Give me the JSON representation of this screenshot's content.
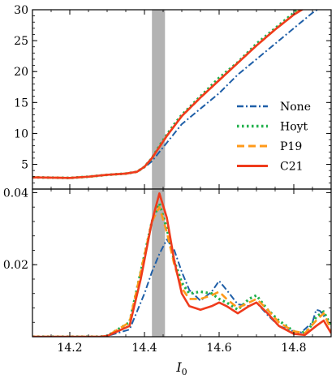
{
  "chart_data": [
    {
      "type": "line",
      "xlabel": "",
      "ylabel": "",
      "xlim": [
        14.1,
        14.9
      ],
      "ylim": [
        1,
        30
      ],
      "yticks": [
        5,
        10,
        15,
        20,
        25,
        30
      ],
      "shaded_band": {
        "x0": 14.42,
        "x1": 14.455,
        "color": "#b3b3b3"
      },
      "legend": {
        "placement": "center-right",
        "entries": [
          "None",
          "Hoyt",
          "P19",
          "C21"
        ]
      },
      "series": [
        {
          "name": "None",
          "color": "#1f5fa8",
          "dash": "dashdot",
          "x": [
            14.1,
            14.2,
            14.25,
            14.3,
            14.35,
            14.38,
            14.4,
            14.42,
            14.44,
            14.46,
            14.48,
            14.5,
            14.55,
            14.6,
            14.65,
            14.7,
            14.75,
            14.8,
            14.85,
            14.9
          ],
          "y": [
            2.9,
            2.8,
            3.0,
            3.3,
            3.5,
            3.8,
            4.5,
            5.5,
            7.0,
            8.5,
            10.0,
            11.5,
            14.0,
            16.5,
            19.5,
            22.0,
            24.5,
            27.0,
            29.5,
            31.5
          ]
        },
        {
          "name": "Hoyt",
          "color": "#22b14c",
          "dash": "dotted",
          "x": [
            14.1,
            14.2,
            14.25,
            14.3,
            14.35,
            14.38,
            14.4,
            14.42,
            14.44,
            14.46,
            14.48,
            14.5,
            14.55,
            14.6,
            14.65,
            14.7,
            14.75,
            14.8,
            14.83,
            14.9
          ],
          "y": [
            2.9,
            2.8,
            3.0,
            3.3,
            3.5,
            3.8,
            4.6,
            6.0,
            8.0,
            9.8,
            11.5,
            13.0,
            16.0,
            19.0,
            21.5,
            24.5,
            27.0,
            29.5,
            31.0,
            32.5
          ]
        },
        {
          "name": "P19",
          "color": "#ff9a1a",
          "dash": "dashed",
          "x": [
            14.1,
            14.2,
            14.25,
            14.3,
            14.35,
            14.38,
            14.4,
            14.42,
            14.44,
            14.46,
            14.48,
            14.5,
            14.55,
            14.6,
            14.65,
            14.7,
            14.75,
            14.8,
            14.83,
            14.9
          ],
          "y": [
            2.9,
            2.8,
            3.0,
            3.3,
            3.5,
            3.8,
            4.6,
            6.0,
            7.8,
            9.6,
            11.2,
            12.8,
            15.8,
            18.6,
            21.4,
            24.2,
            26.8,
            29.2,
            30.5,
            32.5
          ]
        },
        {
          "name": "C21",
          "color": "#ef3b1c",
          "dash": "solid",
          "x": [
            14.1,
            14.2,
            14.25,
            14.3,
            14.35,
            14.38,
            14.4,
            14.42,
            14.44,
            14.46,
            14.48,
            14.5,
            14.55,
            14.6,
            14.65,
            14.7,
            14.75,
            14.8,
            14.83,
            14.9
          ],
          "y": [
            2.9,
            2.8,
            3.0,
            3.3,
            3.5,
            3.8,
            4.6,
            6.0,
            7.8,
            9.6,
            11.2,
            12.8,
            15.8,
            18.6,
            21.4,
            24.2,
            26.8,
            29.2,
            30.3,
            32.5
          ]
        }
      ]
    },
    {
      "type": "line",
      "xlabel": "I0",
      "ylabel": "",
      "xlim": [
        14.1,
        14.9
      ],
      "ylim": [
        0,
        0.041
      ],
      "xticks": [
        14.2,
        14.4,
        14.6,
        14.8
      ],
      "yticks": [
        0.02,
        0.04
      ],
      "shaded_band": {
        "x0": 14.42,
        "x1": 14.455,
        "color": "#b3b3b3"
      },
      "series": [
        {
          "name": "None",
          "color": "#1f5fa8",
          "dash": "dashdot",
          "x": [
            14.1,
            14.28,
            14.3,
            14.36,
            14.4,
            14.42,
            14.44,
            14.46,
            14.48,
            14.5,
            14.52,
            14.55,
            14.58,
            14.6,
            14.62,
            14.65,
            14.68,
            14.7,
            14.73,
            14.76,
            14.8,
            14.82,
            14.85,
            14.86,
            14.87,
            14.9
          ],
          "y": [
            0,
            0,
            0.0002,
            0.002,
            0.012,
            0.018,
            0.023,
            0.027,
            0.024,
            0.018,
            0.013,
            0.01,
            0.0125,
            0.0155,
            0.013,
            0.009,
            0.0085,
            0.0095,
            0.006,
            0.003,
            0.0015,
            0.0012,
            0.004,
            0.0075,
            0.0072,
            0.003
          ]
        },
        {
          "name": "Hoyt",
          "color": "#22b14c",
          "dash": "dotted",
          "x": [
            14.1,
            14.28,
            14.3,
            14.36,
            14.39,
            14.42,
            14.44,
            14.46,
            14.48,
            14.5,
            14.52,
            14.55,
            14.58,
            14.6,
            14.62,
            14.65,
            14.68,
            14.7,
            14.73,
            14.76,
            14.8,
            14.82,
            14.84,
            14.86,
            14.88,
            14.9
          ],
          "y": [
            0,
            0,
            0.0002,
            0.004,
            0.018,
            0.032,
            0.037,
            0.03,
            0.021,
            0.015,
            0.012,
            0.0125,
            0.012,
            0.0105,
            0.0095,
            0.0075,
            0.0105,
            0.0115,
            0.0075,
            0.0045,
            0.0015,
            0.001,
            0.002,
            0.0055,
            0.007,
            0.003
          ]
        },
        {
          "name": "P19",
          "color": "#ff9a1a",
          "dash": "dashed",
          "x": [
            14.1,
            14.28,
            14.3,
            14.36,
            14.39,
            14.42,
            14.44,
            14.46,
            14.48,
            14.5,
            14.52,
            14.55,
            14.58,
            14.6,
            14.62,
            14.65,
            14.68,
            14.7,
            14.73,
            14.76,
            14.8,
            14.83,
            14.86,
            14.88,
            14.9
          ],
          "y": [
            0,
            0,
            0.0002,
            0.004,
            0.018,
            0.032,
            0.036,
            0.029,
            0.02,
            0.0135,
            0.0105,
            0.0105,
            0.0115,
            0.0125,
            0.0105,
            0.008,
            0.0095,
            0.0105,
            0.0075,
            0.004,
            0.0015,
            0.001,
            0.0045,
            0.0065,
            0.002
          ]
        },
        {
          "name": "C21",
          "color": "#ef3b1c",
          "dash": "solid",
          "x": [
            14.1,
            14.28,
            14.3,
            14.36,
            14.39,
            14.42,
            14.44,
            14.46,
            14.48,
            14.5,
            14.52,
            14.55,
            14.58,
            14.6,
            14.62,
            14.65,
            14.68,
            14.7,
            14.73,
            14.76,
            14.8,
            14.83,
            14.86,
            14.88,
            14.9
          ],
          "y": [
            0,
            0,
            0.0002,
            0.003,
            0.016,
            0.032,
            0.0398,
            0.033,
            0.021,
            0.012,
            0.0085,
            0.0075,
            0.0085,
            0.0095,
            0.0085,
            0.0065,
            0.0085,
            0.0095,
            0.0065,
            0.003,
            0.0008,
            0.0005,
            0.003,
            0.0045,
            0.001
          ]
        }
      ]
    }
  ]
}
